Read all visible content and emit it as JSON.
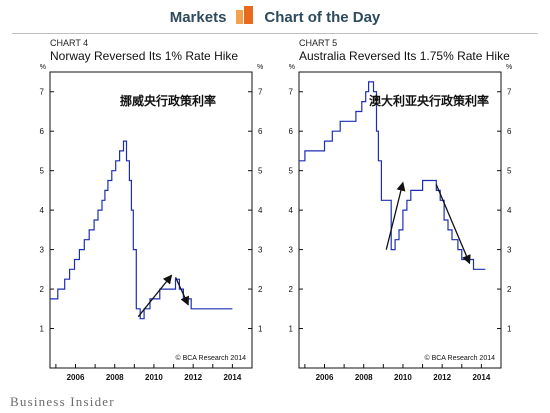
{
  "header": {
    "left": "Markets",
    "right": "Chart of the Day",
    "logo": "bar-chart-icon",
    "logo_colors": [
      "#f4a24b",
      "#e86a1d"
    ]
  },
  "footer": {
    "brand": "Business Insider"
  },
  "colors": {
    "line": "#1c2fb4",
    "arrow": "#111111",
    "axis": "#111111",
    "text": "#111111"
  },
  "chart_data": [
    {
      "type": "line",
      "label": "CHART 4",
      "title": "Norway Reversed Its 1% Rate Hike",
      "annotation": "挪威央行政策利率",
      "source": "© BCA Research 2014",
      "unit": "%",
      "ylim": [
        0,
        7.5
      ],
      "yticks": [
        1,
        2,
        3,
        4,
        5,
        6,
        7
      ],
      "xlim": [
        2004.7,
        2015.0
      ],
      "xticks": [
        2005,
        2006,
        2007,
        2008,
        2009,
        2010,
        2011,
        2012,
        2013,
        2014
      ],
      "xticklabels": [
        "2006",
        "2008",
        "2010",
        "2012",
        "2014"
      ],
      "xticklabel_years": [
        2006,
        2008,
        2010,
        2012,
        2014
      ],
      "grid": false,
      "legend": "none",
      "series": [
        {
          "x": [
            2004.7,
            2005.1,
            2005.45,
            2005.7,
            2005.95,
            2006.2,
            2006.45,
            2006.7,
            2006.95,
            2007.15,
            2007.35,
            2007.5,
            2007.65,
            2007.85,
            2008.05,
            2008.25,
            2008.45,
            2008.6,
            2008.75,
            2008.85,
            2008.95,
            2009.1,
            2009.3,
            2009.5,
            2009.8,
            2010.3,
            2010.7,
            2011.1,
            2011.3,
            2011.5,
            2011.7,
            2011.9,
            2014.0
          ],
          "y": [
            1.75,
            2.0,
            2.25,
            2.5,
            2.75,
            3.0,
            3.25,
            3.5,
            3.75,
            4.0,
            4.25,
            4.5,
            4.75,
            5.0,
            5.25,
            5.5,
            5.75,
            5.25,
            4.75,
            4.0,
            3.0,
            1.5,
            1.25,
            1.5,
            1.75,
            2.0,
            2.0,
            2.25,
            2.0,
            1.75,
            1.75,
            1.5,
            1.5
          ]
        }
      ],
      "arrows": [
        {
          "from": [
            2009.2,
            1.3
          ],
          "to": [
            2010.9,
            2.35
          ]
        },
        {
          "from": [
            2011.1,
            2.3
          ],
          "to": [
            2011.75,
            1.6
          ]
        }
      ]
    },
    {
      "type": "line",
      "label": "CHART 5",
      "title": "Australia Reversed Its 1.75% Rate Hike",
      "annotation": "澳大利亚央行政策利率",
      "source": "© BCA Research 2014",
      "unit": "%",
      "ylim": [
        0,
        7.5
      ],
      "yticks": [
        1,
        2,
        3,
        4,
        5,
        6,
        7
      ],
      "xlim": [
        2004.7,
        2015.0
      ],
      "xticks": [
        2005,
        2006,
        2007,
        2008,
        2009,
        2010,
        2011,
        2012,
        2013,
        2014
      ],
      "xticklabels": [
        "2006",
        "2008",
        "2010",
        "2012",
        "2014"
      ],
      "xticklabel_years": [
        2006,
        2008,
        2010,
        2012,
        2014
      ],
      "grid": false,
      "legend": "none",
      "series": [
        {
          "x": [
            2004.7,
            2005.0,
            2005.5,
            2006.0,
            2006.4,
            2006.8,
            2007.2,
            2007.6,
            2007.9,
            2008.1,
            2008.25,
            2008.35,
            2008.5,
            2008.65,
            2008.75,
            2008.9,
            2009.4,
            2009.6,
            2009.8,
            2010.0,
            2010.2,
            2010.4,
            2011.0,
            2011.5,
            2011.7,
            2011.9,
            2012.1,
            2012.3,
            2012.5,
            2012.8,
            2013.0,
            2013.3,
            2013.6,
            2014.2
          ],
          "y": [
            5.25,
            5.5,
            5.5,
            5.75,
            6.0,
            6.25,
            6.25,
            6.5,
            6.75,
            7.0,
            7.25,
            7.25,
            7.0,
            6.0,
            5.25,
            4.25,
            3.0,
            3.25,
            3.5,
            4.0,
            4.25,
            4.5,
            4.75,
            4.75,
            4.5,
            4.25,
            3.75,
            3.5,
            3.25,
            3.0,
            2.75,
            2.75,
            2.5,
            2.5
          ]
        }
      ],
      "arrows": [
        {
          "from": [
            2009.15,
            3.0
          ],
          "to": [
            2010.0,
            4.7
          ]
        },
        {
          "from": [
            2011.7,
            4.65
          ],
          "to": [
            2013.4,
            2.65
          ]
        }
      ]
    }
  ]
}
